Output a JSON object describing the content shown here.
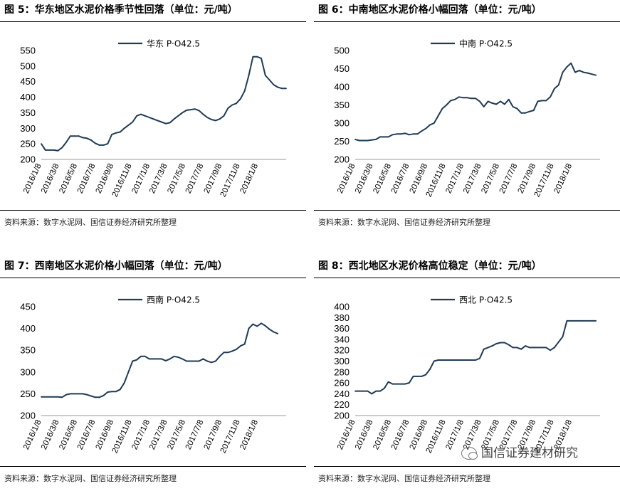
{
  "panels": [
    {
      "title": "图 5：华东地区水泥价格季节性回落（单位：元/吨）",
      "source": "资料来源：数字水泥网、国信证券经济研究所整理"
    },
    {
      "title": "图 6：中南地区水泥价格小幅回落（单位：元/吨）",
      "source": "资料来源：数字水泥网、国信证券经济研究所整理"
    },
    {
      "title": "图 7：西南地区水泥价格小幅回落（单位：元/吨）",
      "source": "资料来源：数字水泥网、国信证券经济研究所整理"
    },
    {
      "title": "图 8：西北地区水泥价格高位稳定（单位：元/吨）",
      "source": "资料来源：数字水泥网、国信证券经济研究所整理"
    }
  ],
  "watermark": "国信证券建材研究",
  "line_color": "#1f3b55",
  "chart_data": [
    {
      "type": "line",
      "title": "图 5：华东地区水泥价格季节性回落（单位：元/吨）",
      "series": [
        {
          "name": "华东 P·O42.5"
        }
      ],
      "x_tick_labels": [
        "2016/1/8",
        "2016/3/8",
        "2016/5/8",
        "2016/7/8",
        "2016/9/8",
        "2016/11/8",
        "2017/1/8",
        "2017/3/8",
        "2017/5/8",
        "2017/7/8",
        "2017/9/8",
        "2017/11/8",
        "2018/1/8"
      ],
      "x_range": [
        "2016/1/8",
        "2018/4/13"
      ],
      "y_ticks": [
        200,
        250,
        300,
        350,
        400,
        450,
        500,
        550
      ],
      "ylim": [
        200,
        550
      ],
      "points": [
        [
          "2016/1/8",
          250
        ],
        [
          "2016/1/22",
          230
        ],
        [
          "2016/2/5",
          230
        ],
        [
          "2016/2/19",
          230
        ],
        [
          "2016/3/4",
          228
        ],
        [
          "2016/3/18",
          238
        ],
        [
          "2016/4/1",
          255
        ],
        [
          "2016/4/15",
          275
        ],
        [
          "2016/4/29",
          275
        ],
        [
          "2016/5/13",
          275
        ],
        [
          "2016/5/27",
          270
        ],
        [
          "2016/6/10",
          268
        ],
        [
          "2016/6/24",
          262
        ],
        [
          "2016/7/8",
          252
        ],
        [
          "2016/7/22",
          246
        ],
        [
          "2016/8/5",
          246
        ],
        [
          "2016/8/19",
          250
        ],
        [
          "2016/9/2",
          280
        ],
        [
          "2016/9/16",
          285
        ],
        [
          "2016/9/30",
          288
        ],
        [
          "2016/10/14",
          300
        ],
        [
          "2016/10/28",
          310
        ],
        [
          "2016/11/11",
          320
        ],
        [
          "2016/11/25",
          340
        ],
        [
          "2016/12/9",
          345
        ],
        [
          "2016/12/23",
          340
        ],
        [
          "2017/1/6",
          335
        ],
        [
          "2017/1/20",
          330
        ],
        [
          "2017/2/3",
          325
        ],
        [
          "2017/2/17",
          320
        ],
        [
          "2017/3/3",
          315
        ],
        [
          "2017/3/17",
          318
        ],
        [
          "2017/3/31",
          330
        ],
        [
          "2017/4/14",
          340
        ],
        [
          "2017/4/28",
          350
        ],
        [
          "2017/5/12",
          358
        ],
        [
          "2017/5/26",
          360
        ],
        [
          "2017/6/9",
          362
        ],
        [
          "2017/6/23",
          357
        ],
        [
          "2017/7/7",
          345
        ],
        [
          "2017/7/21",
          335
        ],
        [
          "2017/8/4",
          328
        ],
        [
          "2017/8/18",
          325
        ],
        [
          "2017/9/1",
          330
        ],
        [
          "2017/9/15",
          340
        ],
        [
          "2017/9/29",
          365
        ],
        [
          "2017/10/13",
          375
        ],
        [
          "2017/10/27",
          380
        ],
        [
          "2017/11/10",
          395
        ],
        [
          "2017/11/24",
          420
        ],
        [
          "2017/12/8",
          470
        ],
        [
          "2017/12/22",
          530
        ],
        [
          "2018/1/5",
          530
        ],
        [
          "2018/1/19",
          525
        ],
        [
          "2018/2/2",
          470
        ],
        [
          "2018/2/16",
          455
        ],
        [
          "2018/3/2",
          440
        ],
        [
          "2018/3/16",
          432
        ],
        [
          "2018/3/30",
          428
        ],
        [
          "2018/4/13",
          428
        ]
      ]
    },
    {
      "type": "line",
      "title": "图 6：中南地区水泥价格小幅回落（单位：元/吨）",
      "series": [
        {
          "name": "中南 P·O42.5"
        }
      ],
      "x_tick_labels": [
        "2016/1/8",
        "2016/3/8",
        "2016/5/8",
        "2016/7/8",
        "2016/9/8",
        "2016/11/8",
        "2017/1/8",
        "2017/3/8",
        "2017/5/8",
        "2017/7/8",
        "2017/9/8",
        "2017/11/8",
        "2018/1/8"
      ],
      "x_range": [
        "2016/1/8",
        "2018/4/13"
      ],
      "y_ticks": [
        200,
        250,
        300,
        350,
        400,
        450,
        500
      ],
      "ylim": [
        200,
        500
      ],
      "points": [
        [
          "2016/1/8",
          255
        ],
        [
          "2016/1/22",
          252
        ],
        [
          "2016/2/19",
          252
        ],
        [
          "2016/3/18",
          255
        ],
        [
          "2016/4/1",
          262
        ],
        [
          "2016/4/29",
          262
        ],
        [
          "2016/5/13",
          268
        ],
        [
          "2016/5/27",
          270
        ],
        [
          "2016/6/10",
          270
        ],
        [
          "2016/6/24",
          272
        ],
        [
          "2016/7/8",
          268
        ],
        [
          "2016/7/22",
          270
        ],
        [
          "2016/8/5",
          270
        ],
        [
          "2016/8/19",
          278
        ],
        [
          "2016/9/2",
          285
        ],
        [
          "2016/9/16",
          295
        ],
        [
          "2016/9/30",
          300
        ],
        [
          "2016/10/14",
          320
        ],
        [
          "2016/10/28",
          340
        ],
        [
          "2016/11/11",
          350
        ],
        [
          "2016/11/25",
          362
        ],
        [
          "2016/12/9",
          365
        ],
        [
          "2016/12/23",
          372
        ],
        [
          "2017/1/6",
          370
        ],
        [
          "2017/1/20",
          370
        ],
        [
          "2017/2/3",
          368
        ],
        [
          "2017/2/17",
          368
        ],
        [
          "2017/3/3",
          360
        ],
        [
          "2017/3/17",
          345
        ],
        [
          "2017/3/31",
          360
        ],
        [
          "2017/4/14",
          355
        ],
        [
          "2017/4/28",
          352
        ],
        [
          "2017/5/12",
          360
        ],
        [
          "2017/5/26",
          352
        ],
        [
          "2017/6/9",
          365
        ],
        [
          "2017/6/23",
          345
        ],
        [
          "2017/7/7",
          340
        ],
        [
          "2017/7/21",
          328
        ],
        [
          "2017/8/4",
          328
        ],
        [
          "2017/8/18",
          332
        ],
        [
          "2017/9/1",
          335
        ],
        [
          "2017/9/15",
          360
        ],
        [
          "2017/9/29",
          362
        ],
        [
          "2017/10/13",
          362
        ],
        [
          "2017/10/27",
          372
        ],
        [
          "2017/11/10",
          395
        ],
        [
          "2017/11/24",
          405
        ],
        [
          "2017/12/8",
          440
        ],
        [
          "2017/12/22",
          455
        ],
        [
          "2018/1/5",
          465
        ],
        [
          "2018/1/19",
          440
        ],
        [
          "2018/2/2",
          445
        ],
        [
          "2018/2/16",
          440
        ],
        [
          "2018/3/2",
          438
        ],
        [
          "2018/3/16",
          435
        ],
        [
          "2018/3/30",
          432
        ]
      ]
    },
    {
      "type": "line",
      "title": "图 7：西南地区水泥价格小幅回落（单位：元/吨）",
      "series": [
        {
          "name": "西南 P·O42.5"
        }
      ],
      "x_tick_labels": [
        "2016/1/8",
        "2016/3/8",
        "2016/5/8",
        "2016/7/8",
        "2016/9/8",
        "2016/11/8",
        "2017/1/8",
        "2017/3/8",
        "2017/5/8",
        "2017/7/8",
        "2017/9/8",
        "2017/11/8",
        "2018/1/8"
      ],
      "x_range": [
        "2016/1/8",
        "2018/4/13"
      ],
      "y_ticks": [
        200,
        250,
        300,
        350,
        400,
        450
      ],
      "ylim": [
        200,
        450
      ],
      "points": [
        [
          "2016/1/8",
          243
        ],
        [
          "2016/3/4",
          243
        ],
        [
          "2016/3/18",
          242
        ],
        [
          "2016/4/1",
          248
        ],
        [
          "2016/4/15",
          250
        ],
        [
          "2016/5/27",
          250
        ],
        [
          "2016/6/10",
          248
        ],
        [
          "2016/6/24",
          245
        ],
        [
          "2016/7/8",
          242
        ],
        [
          "2016/7/22",
          242
        ],
        [
          "2016/8/5",
          246
        ],
        [
          "2016/8/19",
          254
        ],
        [
          "2016/9/2",
          255
        ],
        [
          "2016/9/16",
          255
        ],
        [
          "2016/9/30",
          260
        ],
        [
          "2016/10/14",
          275
        ],
        [
          "2016/10/28",
          300
        ],
        [
          "2016/11/11",
          325
        ],
        [
          "2016/11/25",
          328
        ],
        [
          "2016/12/9",
          336
        ],
        [
          "2016/12/23",
          336
        ],
        [
          "2017/1/6",
          330
        ],
        [
          "2017/1/20",
          330
        ],
        [
          "2017/2/17",
          330
        ],
        [
          "2017/3/3",
          326
        ],
        [
          "2017/3/17",
          330
        ],
        [
          "2017/3/31",
          336
        ],
        [
          "2017/4/14",
          334
        ],
        [
          "2017/4/28",
          330
        ],
        [
          "2017/5/12",
          325
        ],
        [
          "2017/5/26",
          325
        ],
        [
          "2017/6/23",
          325
        ],
        [
          "2017/7/7",
          330
        ],
        [
          "2017/7/21",
          325
        ],
        [
          "2017/8/4",
          322
        ],
        [
          "2017/8/18",
          325
        ],
        [
          "2017/9/1",
          336
        ],
        [
          "2017/9/15",
          345
        ],
        [
          "2017/9/29",
          345
        ],
        [
          "2017/10/13",
          348
        ],
        [
          "2017/10/27",
          352
        ],
        [
          "2017/11/10",
          360
        ],
        [
          "2017/11/24",
          364
        ],
        [
          "2017/12/8",
          400
        ],
        [
          "2017/12/22",
          410
        ],
        [
          "2018/1/5",
          405
        ],
        [
          "2018/1/19",
          412
        ],
        [
          "2018/2/2",
          406
        ],
        [
          "2018/2/16",
          398
        ],
        [
          "2018/3/2",
          392
        ],
        [
          "2018/3/16",
          388
        ]
      ]
    },
    {
      "type": "line",
      "title": "图 8：西北地区水泥价格高位稳定（单位：元/吨）",
      "series": [
        {
          "name": "西北 P·O42.5"
        }
      ],
      "x_tick_labels": [
        "2016/1/8",
        "2016/3/8",
        "2016/5/8",
        "2016/7/8",
        "2016/9/8",
        "2016/11/8",
        "2017/1/8",
        "2017/3/8",
        "2017/5/8",
        "2017/7/8",
        "2017/9/8",
        "2017/11/8",
        "2018/1/8"
      ],
      "x_range": [
        "2016/1/8",
        "2018/4/13"
      ],
      "y_ticks": [
        200,
        220,
        240,
        260,
        280,
        300,
        320,
        340,
        360,
        380,
        400
      ],
      "ylim": [
        200,
        400
      ],
      "points": [
        [
          "2016/1/8",
          245
        ],
        [
          "2016/2/19",
          245
        ],
        [
          "2016/3/4",
          240
        ],
        [
          "2016/3/18",
          245
        ],
        [
          "2016/4/1",
          245
        ],
        [
          "2016/4/15",
          250
        ],
        [
          "2016/4/29",
          262
        ],
        [
          "2016/5/13",
          258
        ],
        [
          "2016/6/24",
          258
        ],
        [
          "2016/7/8",
          260
        ],
        [
          "2016/7/22",
          272
        ],
        [
          "2016/8/5",
          272
        ],
        [
          "2016/8/19",
          272
        ],
        [
          "2016/9/2",
          275
        ],
        [
          "2016/9/16",
          285
        ],
        [
          "2016/9/30",
          300
        ],
        [
          "2016/10/14",
          302
        ],
        [
          "2016/11/25",
          302
        ],
        [
          "2017/1/6",
          302
        ],
        [
          "2017/2/17",
          302
        ],
        [
          "2017/3/3",
          305
        ],
        [
          "2017/3/17",
          322
        ],
        [
          "2017/3/31",
          325
        ],
        [
          "2017/4/14",
          328
        ],
        [
          "2017/4/28",
          332
        ],
        [
          "2017/5/12",
          334
        ],
        [
          "2017/5/26",
          334
        ],
        [
          "2017/6/9",
          330
        ],
        [
          "2017/6/23",
          325
        ],
        [
          "2017/7/7",
          325
        ],
        [
          "2017/7/21",
          322
        ],
        [
          "2017/8/4",
          328
        ],
        [
          "2017/8/18",
          325
        ],
        [
          "2017/9/1",
          325
        ],
        [
          "2017/9/15",
          325
        ],
        [
          "2017/10/13",
          325
        ],
        [
          "2017/10/27",
          320
        ],
        [
          "2017/11/10",
          325
        ],
        [
          "2017/11/24",
          335
        ],
        [
          "2017/12/8",
          345
        ],
        [
          "2017/12/22",
          374
        ],
        [
          "2018/1/5",
          374
        ],
        [
          "2018/2/16",
          374
        ],
        [
          "2018/3/30",
          374
        ]
      ]
    }
  ]
}
